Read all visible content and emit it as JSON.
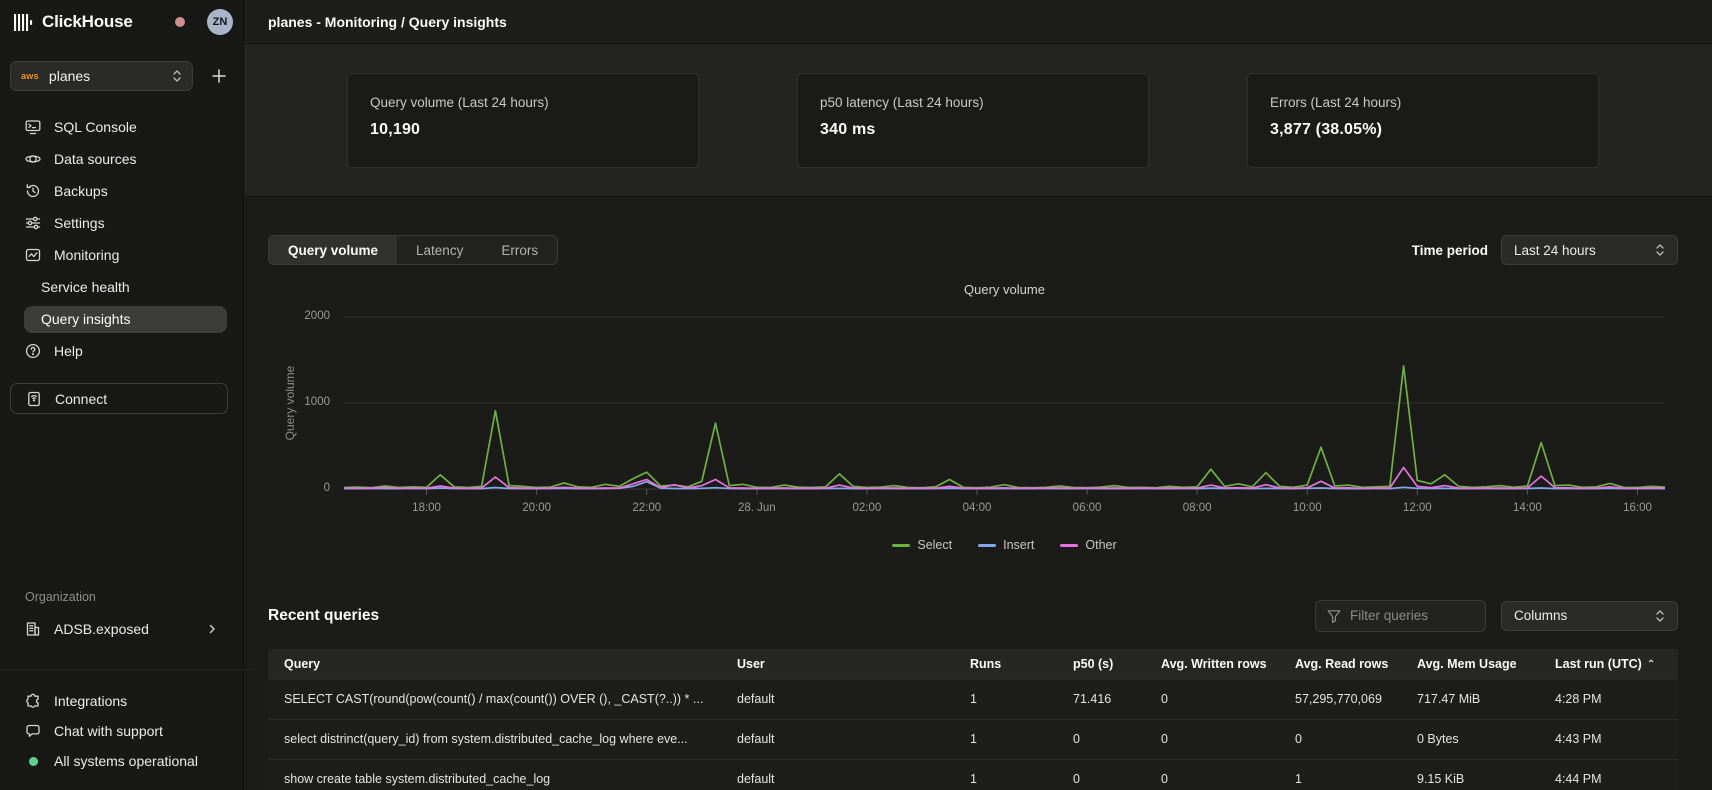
{
  "app": {
    "name": "ClickHouse",
    "avatar_initials": "ZN"
  },
  "sidebar": {
    "service_selector": {
      "provider": "aws",
      "value": "planes"
    },
    "nav": [
      {
        "label": "SQL Console"
      },
      {
        "label": "Data sources"
      },
      {
        "label": "Backups"
      },
      {
        "label": "Settings"
      },
      {
        "label": "Monitoring"
      },
      {
        "label": "Service health"
      },
      {
        "label": "Query insights"
      },
      {
        "label": "Help"
      }
    ],
    "connect_label": "Connect",
    "organization": {
      "section_label": "Organization",
      "name": "ADSB.exposed"
    },
    "footer": {
      "integrations": "Integrations",
      "chat": "Chat with support",
      "status": "All systems operational"
    }
  },
  "header": {
    "title": "planes - Monitoring / Query insights"
  },
  "stats": [
    {
      "label": "Query volume (Last 24 hours)",
      "value": "10,190"
    },
    {
      "label": "p50 latency (Last 24 hours)",
      "value": "340 ms"
    },
    {
      "label": "Errors (Last 24 hours)",
      "value": "3,877 (38.05%)"
    }
  ],
  "toolbar": {
    "tabs": [
      "Query volume",
      "Latency",
      "Errors"
    ],
    "active_tab": "Query volume",
    "time_period_label": "Time period",
    "time_period_value": "Last 24 hours"
  },
  "chart_data": {
    "type": "line",
    "title": "Query volume",
    "ylabel": "Query volume",
    "ylim": [
      0,
      2000
    ],
    "yticks": [
      0,
      1000,
      2000
    ],
    "grid": true,
    "legend_position": "bottom",
    "x": [
      "16:30",
      "16:45",
      "17:00",
      "17:15",
      "17:30",
      "17:45",
      "18:00",
      "18:15",
      "18:30",
      "18:45",
      "19:00",
      "19:15",
      "19:30",
      "19:45",
      "20:00",
      "20:15",
      "20:30",
      "20:45",
      "21:00",
      "21:15",
      "21:30",
      "21:45",
      "22:00",
      "22:15",
      "22:30",
      "22:45",
      "23:00",
      "23:15",
      "23:30",
      "23:45",
      "00:00",
      "00:15",
      "00:30",
      "00:45",
      "01:00",
      "01:15",
      "01:30",
      "01:45",
      "02:00",
      "02:15",
      "02:30",
      "02:45",
      "03:00",
      "03:15",
      "03:30",
      "03:45",
      "04:00",
      "04:15",
      "04:30",
      "04:45",
      "05:00",
      "05:15",
      "05:30",
      "05:45",
      "06:00",
      "06:15",
      "06:30",
      "06:45",
      "07:00",
      "07:15",
      "07:30",
      "07:45",
      "08:00",
      "08:15",
      "08:30",
      "08:45",
      "09:00",
      "09:15",
      "09:30",
      "09:45",
      "10:00",
      "10:15",
      "10:30",
      "10:45",
      "11:00",
      "11:15",
      "11:30",
      "11:45",
      "12:00",
      "12:15",
      "12:30",
      "12:45",
      "13:00",
      "13:15",
      "13:30",
      "13:45",
      "14:00",
      "14:15",
      "14:30",
      "14:45",
      "15:00",
      "15:15",
      "15:30",
      "15:45",
      "16:00",
      "16:15",
      "16:30"
    ],
    "x_tick_indices": [
      6,
      14,
      22,
      30,
      38,
      46,
      54,
      62,
      70,
      78,
      86,
      94
    ],
    "x_tick_labels": [
      "18:00",
      "20:00",
      "22:00",
      "28. Jun",
      "02:00",
      "04:00",
      "06:00",
      "08:00",
      "10:00",
      "12:00",
      "14:00",
      "16:00"
    ],
    "series": [
      {
        "name": "Select",
        "color": "#6cb33e",
        "values": [
          18,
          22,
          15,
          35,
          18,
          25,
          20,
          165,
          25,
          18,
          30,
          910,
          40,
          30,
          18,
          22,
          70,
          25,
          20,
          55,
          30,
          120,
          195,
          35,
          45,
          25,
          90,
          765,
          40,
          55,
          20,
          18,
          45,
          22,
          18,
          25,
          175,
          30,
          18,
          22,
          40,
          18,
          15,
          25,
          110,
          20,
          15,
          22,
          50,
          18,
          15,
          20,
          35,
          18,
          15,
          22,
          40,
          18,
          20,
          15,
          30,
          20,
          25,
          230,
          30,
          60,
          25,
          190,
          30,
          20,
          45,
          485,
          35,
          45,
          20,
          25,
          30,
          1430,
          100,
          60,
          165,
          30,
          20,
          25,
          40,
          20,
          35,
          540,
          40,
          45,
          20,
          25,
          65,
          20,
          18,
          30,
          22
        ]
      },
      {
        "name": "Insert",
        "color": "#84a7ea",
        "values": [
          5,
          4,
          6,
          5,
          4,
          7,
          5,
          12,
          6,
          4,
          5,
          18,
          6,
          5,
          4,
          6,
          8,
          5,
          4,
          6,
          8,
          30,
          85,
          10,
          6,
          5,
          8,
          15,
          6,
          5,
          4,
          5,
          6,
          4,
          5,
          6,
          8,
          5,
          4,
          6,
          5,
          4,
          5,
          6,
          8,
          5,
          4,
          5,
          6,
          4,
          5,
          6,
          5,
          4,
          6,
          5,
          4,
          5,
          6,
          4,
          5,
          6,
          5,
          10,
          6,
          8,
          5,
          8,
          6,
          5,
          8,
          12,
          6,
          5,
          4,
          6,
          5,
          20,
          8,
          6,
          8,
          5,
          4,
          6,
          5,
          4,
          6,
          12,
          5,
          6,
          4,
          5,
          8,
          5,
          4,
          6,
          5
        ]
      },
      {
        "name": "Other",
        "color": "#e374dd",
        "values": [
          10,
          8,
          12,
          15,
          8,
          10,
          9,
          35,
          10,
          8,
          12,
          140,
          15,
          10,
          8,
          10,
          20,
          10,
          8,
          12,
          10,
          60,
          110,
          15,
          50,
          12,
          40,
          110,
          14,
          12,
          8,
          10,
          12,
          8,
          10,
          9,
          45,
          12,
          8,
          10,
          12,
          8,
          10,
          9,
          30,
          10,
          8,
          10,
          14,
          8,
          10,
          9,
          12,
          8,
          10,
          9,
          12,
          8,
          10,
          8,
          10,
          9,
          10,
          45,
          12,
          15,
          10,
          50,
          12,
          8,
          14,
          90,
          12,
          14,
          8,
          10,
          12,
          250,
          30,
          15,
          40,
          10,
          8,
          10,
          12,
          8,
          12,
          150,
          15,
          14,
          8,
          10,
          25,
          9,
          8,
          12,
          10
        ]
      }
    ]
  },
  "recent_queries": {
    "title": "Recent queries",
    "filter_placeholder": "Filter queries",
    "columns_button": "Columns",
    "headers": [
      "Query",
      "User",
      "Runs",
      "p50 (s)",
      "Avg. Written rows",
      "Avg. Read rows",
      "Avg. Mem Usage",
      "Last run (UTC)"
    ],
    "sort": {
      "column": "Last run (UTC)",
      "direction": "asc"
    },
    "rows": [
      [
        "SELECT CAST(round(pow(count() / max(count()) OVER (), _CAST(?..)) * ...",
        "default",
        "1",
        "71.416",
        "0",
        "57,295,770,069",
        "717.47 MiB",
        "4:28 PM"
      ],
      [
        "select distrinct(query_id) from system.distributed_cache_log where eve...",
        "default",
        "1",
        "0",
        "0",
        "0",
        "0 Bytes",
        "4:43 PM"
      ],
      [
        "show create table system.distributed_cache_log",
        "default",
        "1",
        "0",
        "0",
        "1",
        "9.15 KiB",
        "4:44 PM"
      ]
    ]
  }
}
